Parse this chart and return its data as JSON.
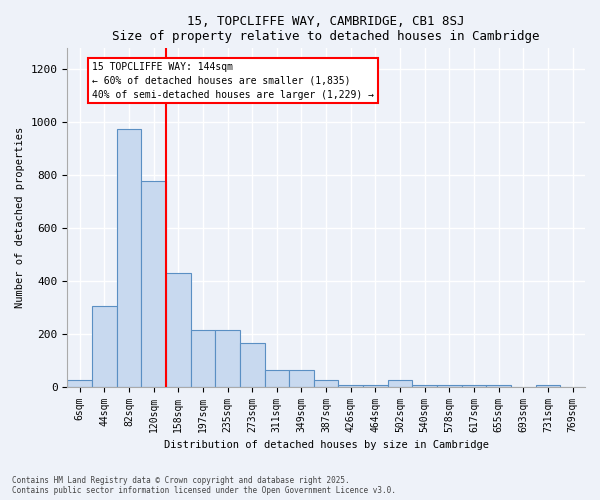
{
  "title": "15, TOPCLIFFE WAY, CAMBRIDGE, CB1 8SJ",
  "subtitle": "Size of property relative to detached houses in Cambridge",
  "xlabel": "Distribution of detached houses by size in Cambridge",
  "ylabel": "Number of detached properties",
  "bar_labels": [
    "6sqm",
    "44sqm",
    "82sqm",
    "120sqm",
    "158sqm",
    "197sqm",
    "235sqm",
    "273sqm",
    "311sqm",
    "349sqm",
    "387sqm",
    "426sqm",
    "464sqm",
    "502sqm",
    "540sqm",
    "578sqm",
    "617sqm",
    "655sqm",
    "693sqm",
    "731sqm",
    "769sqm"
  ],
  "bar_values": [
    25,
    305,
    975,
    780,
    430,
    215,
    215,
    165,
    65,
    65,
    25,
    5,
    5,
    25,
    5,
    5,
    5,
    5,
    0,
    5,
    0
  ],
  "bar_color": "#c8d9ef",
  "bar_edge_color": "#5a8fc3",
  "annotation_box_text": "15 TOPCLIFFE WAY: 144sqm\n← 60% of detached houses are smaller (1,835)\n40% of semi-detached houses are larger (1,229) →",
  "vline_x_index": 3,
  "vline_color": "red",
  "ylim": [
    0,
    1280
  ],
  "yticks": [
    0,
    200,
    400,
    600,
    800,
    1000,
    1200
  ],
  "footnote1": "Contains HM Land Registry data © Crown copyright and database right 2025.",
  "footnote2": "Contains public sector information licensed under the Open Government Licence v3.0.",
  "background_color": "#eef2f9",
  "plot_background_color": "#eef2f9",
  "grid_color": "#ffffff",
  "title_fontsize": 9,
  "subtitle_fontsize": 8,
  "axis_label_fontsize": 7.5,
  "tick_fontsize": 7,
  "annotation_fontsize": 7
}
